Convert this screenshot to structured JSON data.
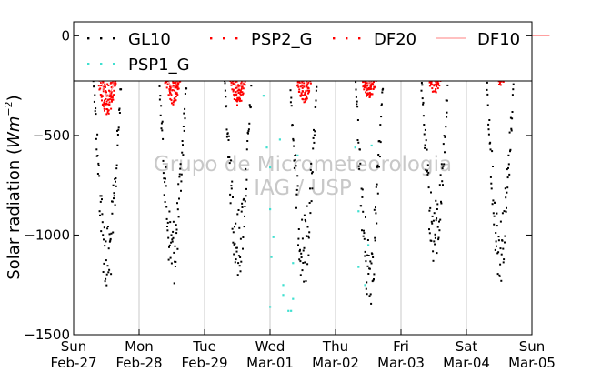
{
  "chart_data": {
    "type": "scatter",
    "title": "",
    "ylabel": "Solar radiation ($Wm^{-2}$)",
    "ylabel_text": "Solar radiation (",
    "ylabel_unit_base": "Wm",
    "ylabel_unit_exp": "−2",
    "ylabel_close": ")",
    "xlabel": "",
    "ylim": [
      -1500,
      70
    ],
    "yticks": [
      0,
      -500,
      -1000,
      -1500
    ],
    "ytick_labels": [
      "0",
      "−500",
      "−1000",
      "−1500"
    ],
    "x_ticks": [
      {
        "day": 0,
        "line1": "Sun",
        "line2": "Feb-27"
      },
      {
        "day": 1,
        "line1": "Mon",
        "line2": "Feb-28"
      },
      {
        "day": 2,
        "line1": "Tue",
        "line2": "Feb-29"
      },
      {
        "day": 3,
        "line1": "Wed",
        "line2": "Mar-01"
      },
      {
        "day": 4,
        "line1": "Thu",
        "line2": "Mar-02"
      },
      {
        "day": 5,
        "line1": "Fri",
        "line2": "Mar-03"
      },
      {
        "day": 6,
        "line1": "Sat",
        "line2": "Mar-04"
      },
      {
        "day": 7,
        "line1": "Sun",
        "line2": "Mar-05"
      }
    ],
    "grid": "vertical",
    "legend_position": "top",
    "watermark_line1": "Grupo de Micrometeorologia",
    "watermark_line2": "IAG / USP",
    "series": [
      {
        "name": "GL10",
        "color": "#000000",
        "style": "dots",
        "daily_peaks": [
          -1120,
          -1080,
          -1050,
          -1080,
          -1180,
          -1000,
          -1060
        ]
      },
      {
        "name": "PSP2_G",
        "color": "#ff0000",
        "style": "dots",
        "daily_peaks": [
          -330,
          -280,
          -280,
          -270,
          -260,
          -230,
          -200
        ]
      },
      {
        "name": "DF20",
        "color": "#ff0000",
        "style": "dots",
        "daily_peaks": [
          -320,
          -270,
          -270,
          -260,
          -250,
          -220,
          -190
        ]
      },
      {
        "name": "DF10",
        "color": "#ff8080",
        "style": "line",
        "daily_peaks": [
          -300,
          -260,
          -260,
          -250,
          -240,
          -210,
          -180
        ]
      },
      {
        "name": "PSP1_G",
        "color": "#40e0d0",
        "style": "sparse-dots",
        "points": [
          [
            2.9,
            -300
          ],
          [
            2.95,
            -560
          ],
          [
            3.0,
            -660
          ],
          [
            3.0,
            -870
          ],
          [
            3.02,
            -1110
          ],
          [
            3.0,
            -1360
          ],
          [
            3.05,
            -1010
          ],
          [
            3.1,
            -220
          ],
          [
            3.15,
            -520
          ],
          [
            3.2,
            -1250
          ],
          [
            3.2,
            -1300
          ],
          [
            3.28,
            -1380
          ],
          [
            3.32,
            -1380
          ],
          [
            3.35,
            -1140
          ],
          [
            3.35,
            -1320
          ],
          [
            3.42,
            -600
          ],
          [
            4.1,
            -150
          ],
          [
            4.2,
            -200
          ],
          [
            4.3,
            -560
          ],
          [
            4.35,
            -880
          ],
          [
            4.35,
            -1160
          ],
          [
            4.45,
            -1250
          ],
          [
            4.5,
            -1050
          ],
          [
            4.55,
            -550
          ],
          [
            4.5,
            -180
          ]
        ]
      }
    ]
  }
}
